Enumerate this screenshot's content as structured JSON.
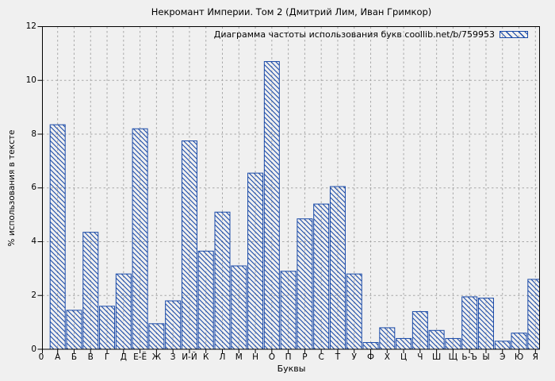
{
  "title": "Некромант Империи. Том 2 (Дмитрий Лим, Иван Гримкор)",
  "legend": {
    "label": "Диаграмма частоты использования букв coollib.net/b/759953"
  },
  "axes": {
    "y_label": "% использования в тексте",
    "x_label": "Буквы",
    "y_ticks": [
      0,
      2,
      4,
      6,
      8,
      10,
      12
    ],
    "x_origin_label": "0"
  },
  "colors": {
    "bar": "#1a4aa8",
    "grid": "#a8a8a8",
    "background": "#f0f0f0",
    "axis": "#000000",
    "text": "#000000"
  },
  "chart_data": {
    "type": "bar",
    "title": "Некромант Империи. Том 2 (Дмитрий Лим, Иван Гримкор)",
    "xlabel": "Буквы",
    "ylabel": "% использования в тексте",
    "legend": "Диаграмма частоты использования букв coollib.net/b/759953",
    "legend_position": "top-right",
    "grid": true,
    "bar_style": "hatched-outline",
    "ylim": [
      0,
      12
    ],
    "categories": [
      "А",
      "Б",
      "В",
      "Г",
      "Д",
      "Е-Ё",
      "Ж",
      "З",
      "И-Й",
      "К",
      "Л",
      "М",
      "Н",
      "О",
      "П",
      "Р",
      "С",
      "Т",
      "У",
      "Ф",
      "Х",
      "Ц",
      "Ч",
      "Ш",
      "Щ",
      "Ь-Ъ",
      "Ы",
      "Э",
      "Ю",
      "Я"
    ],
    "values": [
      8.35,
      1.45,
      4.35,
      1.6,
      2.8,
      8.2,
      0.95,
      1.8,
      7.75,
      3.65,
      5.1,
      3.1,
      6.55,
      10.7,
      2.9,
      4.85,
      5.4,
      6.05,
      2.8,
      0.25,
      0.8,
      0.4,
      1.4,
      0.7,
      0.4,
      1.95,
      1.9,
      0.3,
      0.6,
      2.6
    ]
  }
}
